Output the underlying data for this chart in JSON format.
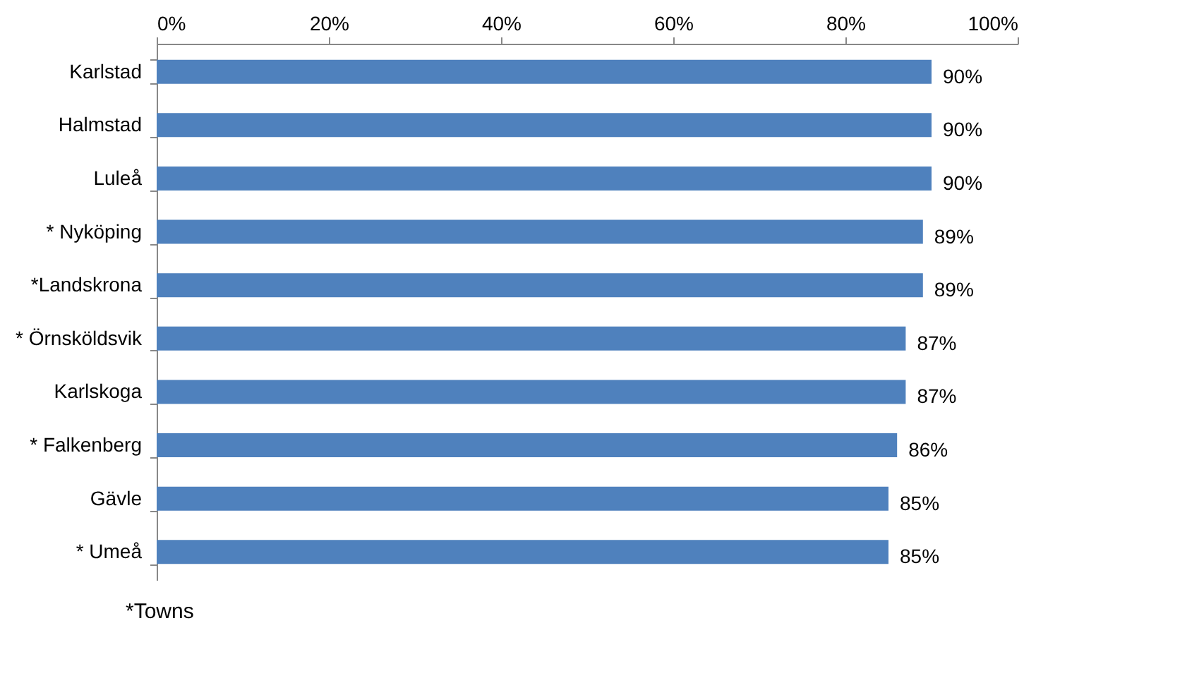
{
  "chart_data": {
    "type": "bar",
    "orientation": "horizontal",
    "categories": [
      "Karlstad",
      "Halmstad",
      "Luleå",
      "* Nyköping",
      "*Landskrona",
      "* Örnsköldsvik",
      "Karlskoga",
      "* Falkenberg",
      "Gävle",
      "* Umeå"
    ],
    "values": [
      90,
      90,
      90,
      89,
      89,
      87,
      87,
      86,
      85,
      85
    ],
    "color": "#4f81bd",
    "xlim": [
      0,
      100
    ],
    "xticks": [
      {
        "value": 0,
        "label": "0%"
      },
      {
        "value": 20,
        "label": "20%"
      },
      {
        "value": 40,
        "label": "40%"
      },
      {
        "value": 60,
        "label": "60%"
      },
      {
        "value": 80,
        "label": "80%"
      },
      {
        "value": 100,
        "label": "100%"
      }
    ],
    "value_labels": [
      "90%",
      "90%",
      "90%",
      "89%",
      "89%",
      "87%",
      "87%",
      "86%",
      "85%",
      "85%"
    ],
    "grid": false,
    "annotations": [
      "*Towns"
    ]
  }
}
